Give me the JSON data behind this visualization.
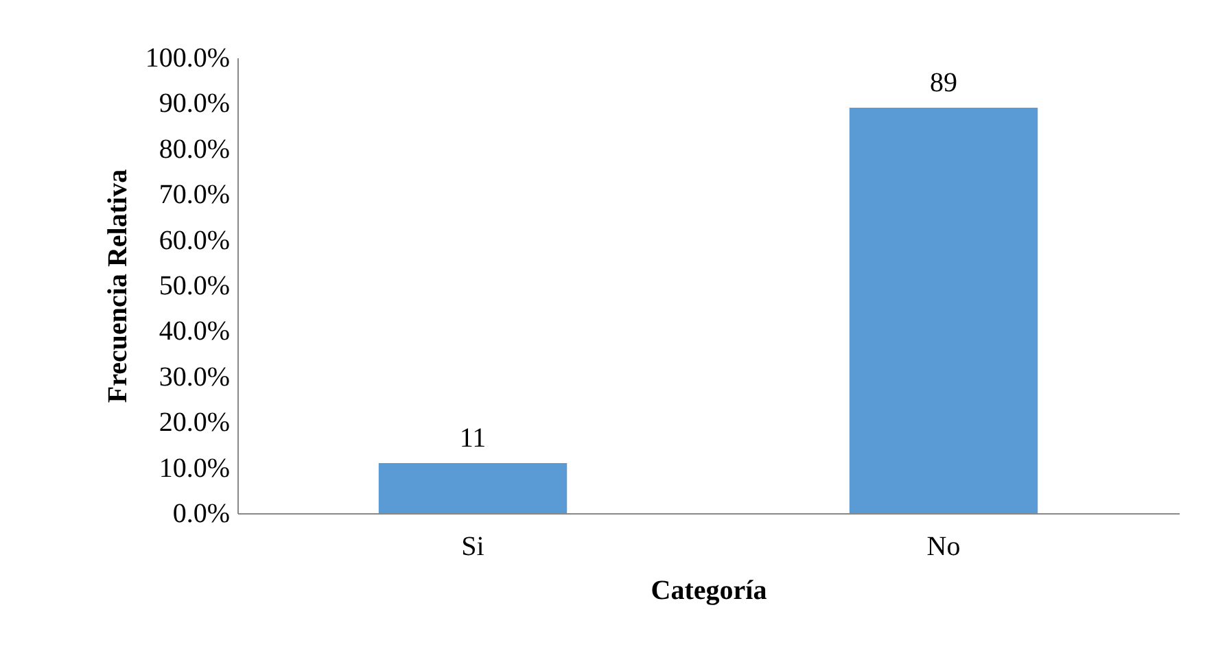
{
  "chart_data": {
    "type": "bar",
    "xlabel": "Categoría",
    "ylabel": "Frecuencia Relativa",
    "categories": [
      "Si",
      "No"
    ],
    "values": [
      11,
      89
    ],
    "color": "#5b9bd5",
    "ylim": [
      0,
      100
    ],
    "yticks": [
      {
        "value": 0,
        "label": "0.0%"
      },
      {
        "value": 10,
        "label": "10.0%"
      },
      {
        "value": 20,
        "label": "20.0%"
      },
      {
        "value": 30,
        "label": "30.0%"
      },
      {
        "value": 40,
        "label": "40.0%"
      },
      {
        "value": 50,
        "label": "50.0%"
      },
      {
        "value": 60,
        "label": "60.0%"
      },
      {
        "value": 70,
        "label": "70.0%"
      },
      {
        "value": 80,
        "label": "80.0%"
      },
      {
        "value": 90,
        "label": "90.0%"
      },
      {
        "value": 100,
        "label": "100.0%"
      }
    ],
    "data_labels": true,
    "grid": false
  }
}
